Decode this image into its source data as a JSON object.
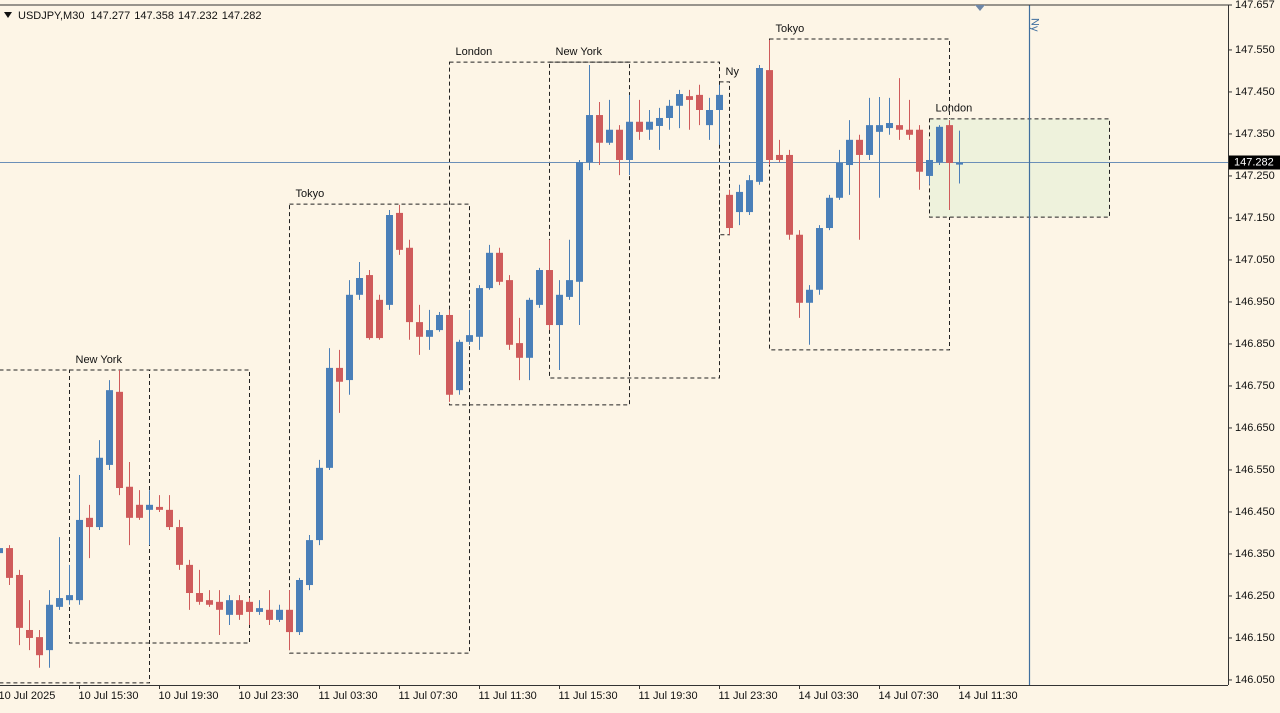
{
  "chart_data": {
    "type": "candlestick",
    "symbol": "USDJPY,M30",
    "header_values": [
      147.277,
      147.358,
      147.232,
      147.282
    ],
    "categories": [
      "10 Jul 2025",
      null,
      null,
      null,
      null,
      null,
      null,
      null,
      "10 Jul 15:30",
      null,
      null,
      null,
      null,
      null,
      null,
      null,
      "10 Jul 19:30",
      null,
      null,
      null,
      null,
      null,
      null,
      null,
      "10 Jul 23:30",
      null,
      null,
      null,
      null,
      null,
      null,
      null,
      "11 Jul 03:30",
      null,
      null,
      null,
      null,
      null,
      null,
      null,
      "11 Jul 07:30",
      null,
      null,
      null,
      null,
      null,
      null,
      null,
      "11 Jul 11:30",
      null,
      null,
      null,
      null,
      null,
      null,
      null,
      "11 Jul 15:30",
      null,
      null,
      null,
      null,
      null,
      null,
      null,
      "11 Jul 19:30",
      null,
      null,
      null,
      null,
      null,
      null,
      null,
      "11 Jul 23:30",
      null,
      null,
      null,
      null,
      null,
      null,
      null,
      "14 Jul 03:30",
      null,
      null,
      null,
      null,
      null,
      null,
      null,
      "14 Jul 07:30",
      null,
      null,
      null,
      null,
      null,
      null,
      null,
      "14 Jul 11:30"
    ],
    "open": [
      146.352,
      146.364,
      146.3,
      146.169,
      146.152,
      146.121,
      146.224,
      146.24,
      146.24,
      146.436,
      146.414,
      146.562,
      146.736,
      146.51,
      146.467,
      146.455,
      146.462,
      146.455,
      146.414,
      146.324,
      146.257,
      146.24,
      146.236,
      146.205,
      146.24,
      146.236,
      146.212,
      146.217,
      146.193,
      146.217,
      146.164,
      146.276,
      146.383,
      146.555,
      146.793,
      146.764,
      146.967,
      147.014,
      146.955,
      146.943,
      147.162,
      147.079,
      146.902,
      146.867,
      146.883,
      146.919,
      146.74,
      146.855,
      146.867,
      146.983,
      147.067,
      147.002,
      146.852,
      146.817,
      146.943,
      147.026,
      146.895,
      146.962,
      146.998,
      147.283,
      147.395,
      147.329,
      147.36,
      147.288,
      147.379,
      147.36,
      147.369,
      147.388,
      147.417,
      147.44,
      147.443,
      147.371,
      147.407,
      147.205,
      147.164,
      147.164,
      147.236,
      147.502,
      147.3,
      147.3,
      147.11,
      146.948,
      146.979,
      147.126,
      147.198,
      147.276,
      147.336,
      147.3,
      147.355,
      147.364,
      147.371,
      147.36,
      147.36,
      147.25,
      147.283,
      147.371,
      147.277
    ],
    "high": [
      146.371,
      146.371,
      146.312,
      146.24,
      146.169,
      146.264,
      146.39,
      146.324,
      146.538,
      146.467,
      146.621,
      146.764,
      146.788,
      146.569,
      146.502,
      146.502,
      146.49,
      146.49,
      146.431,
      146.336,
      146.312,
      146.264,
      146.264,
      146.252,
      146.252,
      146.245,
      146.24,
      146.264,
      146.229,
      146.264,
      146.293,
      146.395,
      146.574,
      146.84,
      146.836,
      147.002,
      147.045,
      147.026,
      146.967,
      147.169,
      147.181,
      147.098,
      146.943,
      146.931,
      146.926,
      146.931,
      146.86,
      146.931,
      146.99,
      147.086,
      147.079,
      147.014,
      146.912,
      146.96,
      147.031,
      147.098,
      147.002,
      147.098,
      147.288,
      147.514,
      147.426,
      147.431,
      147.371,
      147.443,
      147.431,
      147.407,
      147.412,
      147.431,
      147.455,
      147.455,
      147.467,
      147.436,
      147.467,
      147.217,
      147.229,
      147.252,
      147.514,
      147.574,
      147.336,
      147.312,
      147.121,
      146.99,
      147.133,
      147.205,
      147.312,
      147.383,
      147.348,
      147.436,
      147.438,
      147.436,
      147.483,
      147.431,
      147.371,
      147.336,
      147.371,
      147.383,
      147.358
    ],
    "low": [
      146.348,
      146.276,
      146.133,
      146.121,
      146.079,
      146.079,
      146.217,
      146.229,
      146.229,
      146.34,
      146.407,
      146.55,
      146.49,
      146.371,
      146.431,
      146.371,
      146.45,
      146.407,
      146.312,
      146.217,
      146.229,
      146.224,
      146.157,
      146.181,
      146.193,
      146.181,
      146.205,
      146.181,
      146.188,
      146.121,
      146.157,
      146.264,
      146.371,
      146.55,
      146.686,
      146.729,
      146.955,
      146.86,
      146.86,
      146.931,
      147.062,
      146.86,
      146.824,
      146.836,
      146.879,
      146.712,
      146.729,
      146.848,
      146.836,
      146.979,
      146.99,
      146.836,
      146.764,
      146.764,
      146.936,
      146.883,
      146.788,
      146.955,
      146.895,
      147.264,
      147.276,
      147.324,
      147.252,
      147.252,
      147.336,
      147.336,
      147.312,
      147.36,
      147.364,
      147.36,
      147.371,
      147.336,
      147.324,
      147.11,
      147.133,
      147.157,
      147.229,
      147.276,
      147.283,
      147.098,
      146.912,
      146.848,
      146.967,
      147.121,
      147.193,
      147.205,
      147.098,
      147.288,
      147.198,
      147.348,
      147.336,
      147.336,
      147.217,
      147.229,
      147.276,
      147.169,
      147.232
    ],
    "close": [
      146.364,
      146.293,
      146.174,
      146.15,
      146.109,
      146.229,
      146.245,
      146.252,
      146.431,
      146.414,
      146.579,
      146.74,
      146.507,
      146.436,
      146.436,
      146.467,
      146.455,
      146.414,
      146.324,
      146.257,
      146.236,
      146.229,
      146.217,
      146.24,
      146.205,
      146.212,
      146.221,
      146.193,
      146.217,
      146.164,
      146.288,
      146.383,
      146.555,
      146.793,
      146.76,
      146.967,
      147.007,
      146.864,
      146.864,
      147.157,
      147.074,
      146.902,
      146.867,
      146.883,
      146.919,
      146.729,
      146.855,
      146.871,
      146.983,
      147.067,
      146.998,
      146.848,
      146.817,
      146.955,
      147.026,
      146.895,
      146.967,
      147.002,
      147.283,
      147.395,
      147.329,
      147.36,
      147.288,
      147.379,
      147.355,
      147.379,
      147.388,
      147.417,
      147.445,
      147.431,
      147.407,
      147.407,
      147.443,
      147.126,
      147.212,
      147.24,
      147.507,
      147.288,
      147.288,
      147.11,
      146.948,
      146.979,
      147.126,
      147.198,
      147.281,
      147.336,
      147.3,
      147.371,
      147.371,
      147.376,
      147.36,
      147.348,
      147.26,
      147.288,
      147.367,
      147.281,
      147.282
    ],
    "up_color": "#4a7fb8",
    "down_color": "#cf5b5b",
    "ylim": [
      146.038,
      147.657
    ],
    "yticks": [
      147.657,
      {
        "value": 147.55,
        "label": "147.550"
      },
      {
        "value": 147.45,
        "label": "147.450"
      },
      {
        "value": 147.35,
        "label": "147.350"
      },
      {
        "value": 147.25,
        "label": "147.250"
      },
      {
        "value": 147.15,
        "label": "147.150"
      },
      {
        "value": 147.05,
        "label": "147.050"
      },
      {
        "value": 146.95,
        "label": "146.950"
      },
      {
        "value": 146.85,
        "label": "146.850"
      },
      {
        "value": 146.75,
        "label": "146.750"
      },
      {
        "value": 146.65,
        "label": "146.650"
      },
      {
        "value": 146.55,
        "label": "146.550"
      },
      {
        "value": 146.45,
        "label": "146.450"
      },
      {
        "value": 146.35,
        "label": "146.350"
      },
      {
        "value": 146.25,
        "label": "146.250"
      },
      {
        "value": 146.15,
        "label": "146.150"
      },
      {
        "value": 146.05,
        "label": "146.050"
      }
    ],
    "current_price": 147.282,
    "current_price_color": "#6b8fb8",
    "sessions": [
      {
        "from": 0,
        "to": 15,
        "high": 146.788,
        "low": 146.043
      },
      {
        "label": "New York",
        "from": 7,
        "to": 25,
        "high": 146.788,
        "low": 146.138
      },
      {
        "label": "Tokyo",
        "from": 29,
        "to": 47,
        "high": 147.183,
        "low": 146.114
      },
      {
        "label": "London",
        "from": 45,
        "to": 63,
        "high": 147.521,
        "low": 146.705
      },
      {
        "label": "New York",
        "from": 55,
        "to": 72,
        "high": 147.521,
        "low": 146.769
      },
      {
        "label": "Ny",
        "from": 72,
        "to": 73,
        "high": 147.474,
        "low": 147.11
      },
      {
        "label": "Tokyo",
        "from": 77,
        "to": 95,
        "high": 147.576,
        "low": 146.836
      },
      {
        "label": "London",
        "from": 93,
        "to": 111,
        "high": 147.386,
        "low": 147.152,
        "fill": "#eef2dc"
      }
    ],
    "vline": {
      "label": "Ny",
      "at": 103,
      "color": "#3f6f9f"
    }
  }
}
